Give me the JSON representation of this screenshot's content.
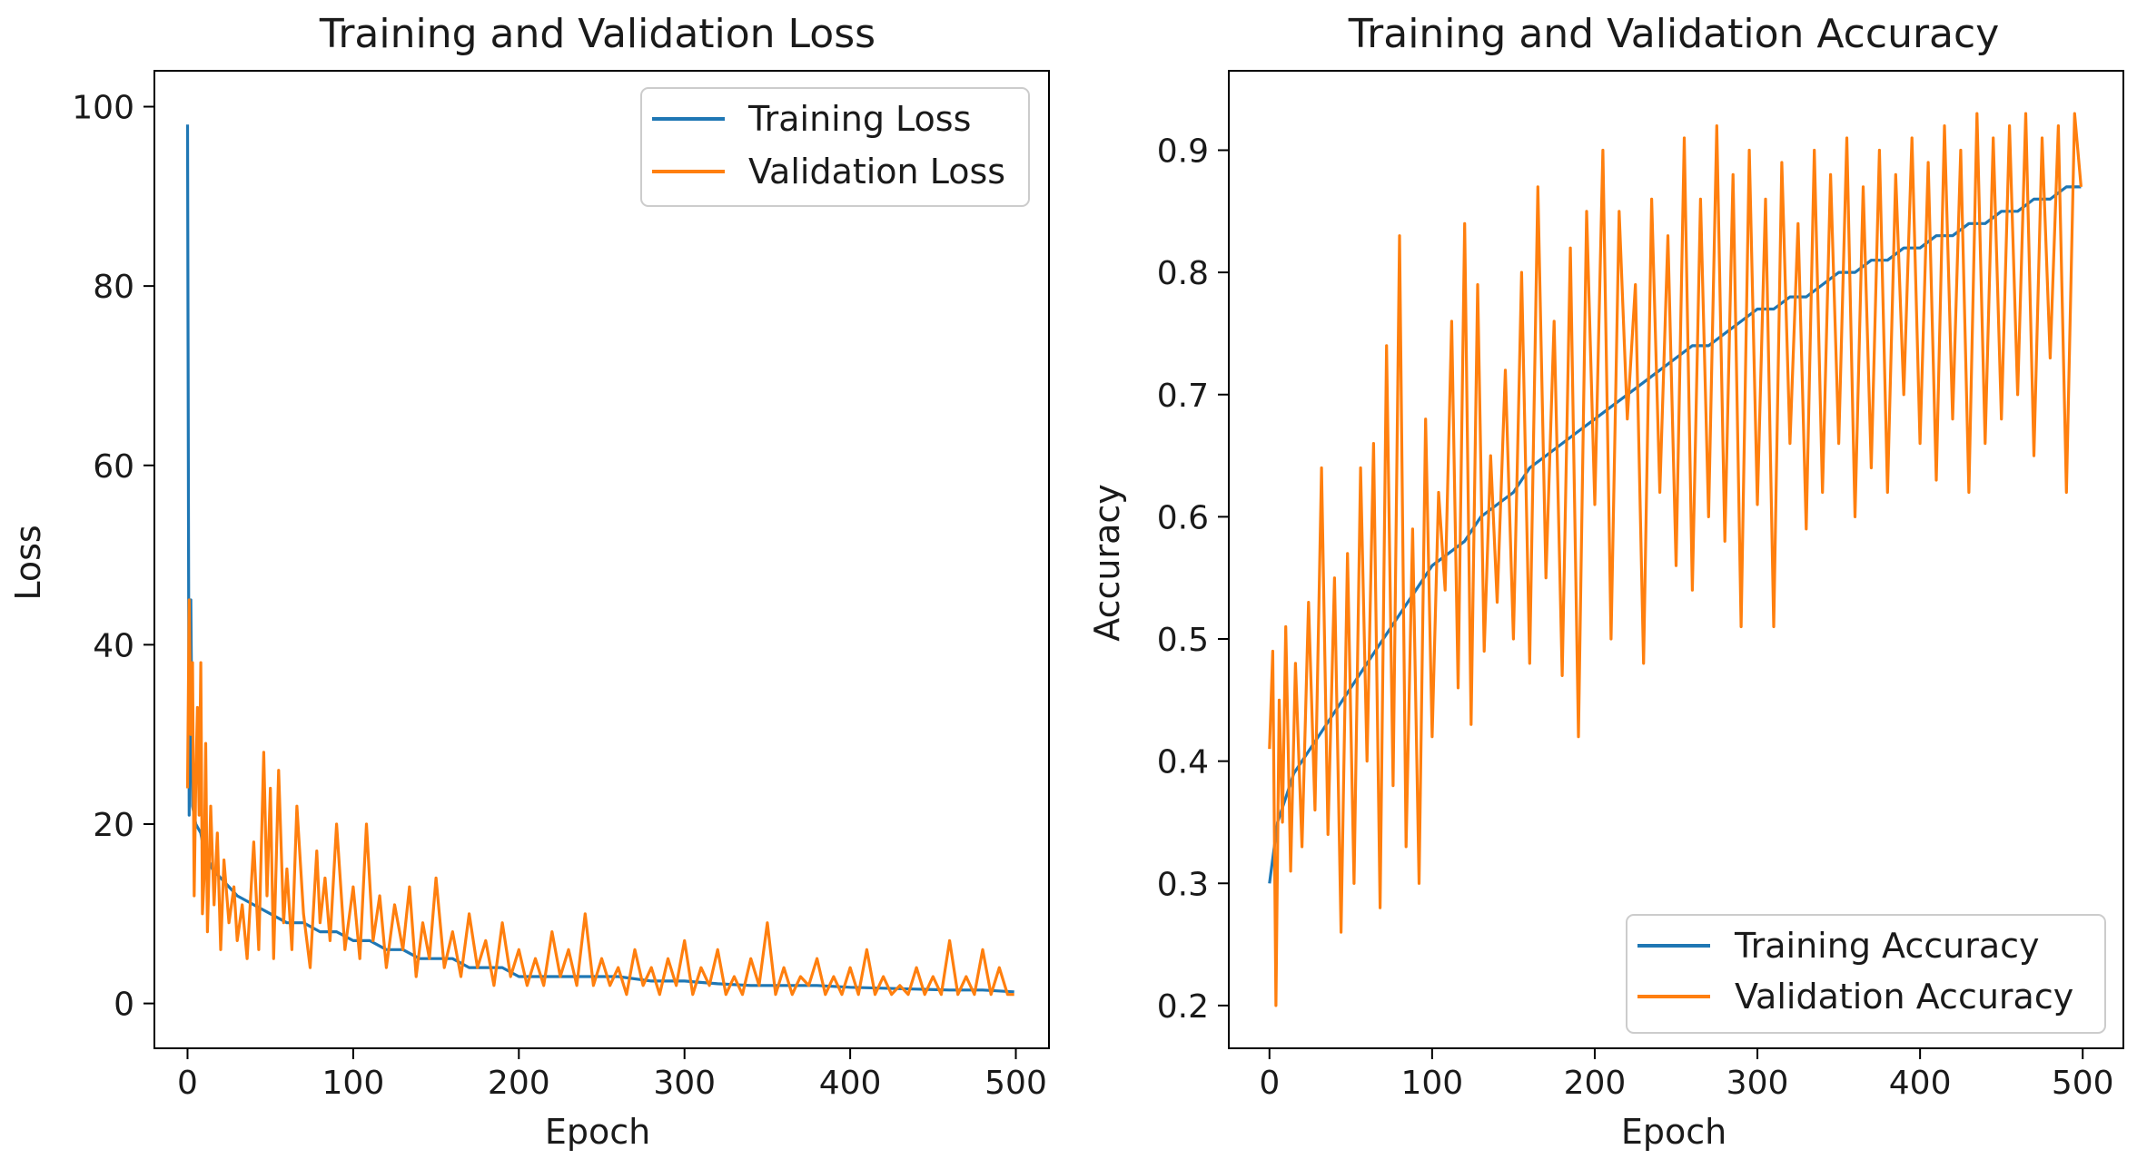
{
  "chart_data": [
    {
      "type": "line",
      "title": "Training and Validation Loss",
      "xlabel": "Epoch",
      "ylabel": "Loss",
      "xlim": [
        -20,
        520
      ],
      "ylim": [
        -5,
        104
      ],
      "xticks": [
        0,
        100,
        200,
        300,
        400,
        500
      ],
      "yticks": [
        0,
        20,
        40,
        60,
        80,
        100
      ],
      "xtick_labels": [
        "0",
        "100",
        "200",
        "300",
        "400",
        "500"
      ],
      "ytick_labels": [
        "0",
        "20",
        "40",
        "60",
        "80",
        "100"
      ],
      "legend_position": "upper right",
      "series": [
        {
          "name": "Training Loss",
          "color": "#1f77b4",
          "x": [
            0,
            1,
            2,
            3,
            5,
            8,
            10,
            15,
            20,
            25,
            30,
            40,
            50,
            60,
            70,
            80,
            90,
            100,
            110,
            120,
            130,
            140,
            150,
            160,
            170,
            180,
            190,
            200,
            220,
            240,
            260,
            280,
            300,
            320,
            340,
            360,
            380,
            400,
            420,
            440,
            460,
            480,
            499
          ],
          "values": [
            98,
            21,
            45,
            22,
            20,
            19,
            17,
            15,
            14,
            13,
            12,
            11,
            10,
            9,
            9,
            8,
            8,
            7,
            7,
            6,
            6,
            5,
            5,
            5,
            4,
            4,
            4,
            3,
            3,
            3,
            3,
            2.5,
            2.5,
            2.2,
            2,
            2,
            2,
            1.8,
            1.7,
            1.6,
            1.5,
            1.5,
            1.3
          ]
        },
        {
          "name": "Validation Loss",
          "color": "#ff7f0e",
          "x": [
            0,
            1,
            2,
            3,
            4,
            5,
            6,
            7,
            8,
            9,
            10,
            11,
            12,
            14,
            16,
            18,
            20,
            22,
            25,
            28,
            30,
            33,
            36,
            40,
            43,
            46,
            48,
            50,
            52,
            55,
            58,
            60,
            63,
            66,
            70,
            74,
            78,
            80,
            83,
            86,
            90,
            95,
            100,
            104,
            108,
            112,
            116,
            120,
            125,
            130,
            134,
            138,
            142,
            146,
            150,
            155,
            160,
            165,
            170,
            175,
            180,
            185,
            190,
            195,
            200,
            205,
            210,
            215,
            220,
            225,
            230,
            235,
            240,
            245,
            250,
            255,
            260,
            265,
            270,
            275,
            280,
            285,
            290,
            295,
            300,
            305,
            310,
            315,
            320,
            325,
            330,
            335,
            340,
            345,
            350,
            355,
            360,
            365,
            370,
            375,
            380,
            385,
            390,
            395,
            400,
            405,
            410,
            415,
            420,
            425,
            430,
            435,
            440,
            445,
            450,
            455,
            460,
            465,
            470,
            475,
            480,
            485,
            490,
            495,
            499
          ],
          "values": [
            24,
            45,
            30,
            38,
            12,
            25,
            33,
            21,
            38,
            10,
            14,
            29,
            8,
            22,
            11,
            19,
            6,
            16,
            9,
            13,
            7,
            11,
            5,
            18,
            6,
            28,
            12,
            24,
            5,
            26,
            9,
            15,
            6,
            22,
            10,
            4,
            17,
            9,
            14,
            7,
            20,
            6,
            13,
            5,
            20,
            7,
            12,
            4,
            11,
            6,
            13,
            3,
            9,
            5,
            14,
            4,
            8,
            3,
            10,
            4,
            7,
            2,
            9,
            3,
            6,
            2,
            5,
            2,
            8,
            3,
            6,
            2,
            10,
            2,
            5,
            2,
            4,
            1,
            6,
            2,
            4,
            1,
            5,
            2,
            7,
            1,
            4,
            2,
            6,
            1,
            3,
            1,
            5,
            2,
            9,
            1,
            4,
            1,
            3,
            2,
            5,
            1,
            3,
            1,
            4,
            1,
            6,
            1,
            3,
            1,
            2,
            1,
            4,
            1,
            3,
            1,
            7,
            1,
            3,
            1,
            6,
            1,
            4,
            1,
            1
          ]
        }
      ]
    },
    {
      "type": "line",
      "title": "Training and Validation Accuracy",
      "xlabel": "Epoch",
      "ylabel": "Accuracy",
      "xlim": [
        -25,
        525
      ],
      "ylim": [
        0.165,
        0.965
      ],
      "xticks": [
        0,
        100,
        200,
        300,
        400,
        500
      ],
      "yticks": [
        0.2,
        0.3,
        0.4,
        0.5,
        0.6,
        0.7,
        0.8,
        0.9
      ],
      "xtick_labels": [
        "0",
        "100",
        "200",
        "300",
        "400",
        "500"
      ],
      "ytick_labels": [
        "0.2",
        "0.3",
        "0.4",
        "0.5",
        "0.6",
        "0.7",
        "0.8",
        "0.9"
      ],
      "legend_position": "lower right",
      "series": [
        {
          "name": "Training Accuracy",
          "color": "#1f77b4",
          "x": [
            0,
            5,
            10,
            15,
            20,
            30,
            40,
            50,
            60,
            70,
            80,
            90,
            100,
            110,
            120,
            130,
            140,
            150,
            160,
            170,
            180,
            190,
            200,
            210,
            220,
            230,
            240,
            250,
            260,
            270,
            280,
            290,
            300,
            310,
            320,
            330,
            340,
            350,
            360,
            370,
            380,
            390,
            400,
            410,
            420,
            430,
            440,
            450,
            460,
            470,
            480,
            490,
            499
          ],
          "values": [
            0.3,
            0.35,
            0.37,
            0.39,
            0.4,
            0.42,
            0.44,
            0.46,
            0.48,
            0.5,
            0.52,
            0.54,
            0.56,
            0.57,
            0.58,
            0.6,
            0.61,
            0.62,
            0.64,
            0.65,
            0.66,
            0.67,
            0.68,
            0.69,
            0.7,
            0.71,
            0.72,
            0.73,
            0.74,
            0.74,
            0.75,
            0.76,
            0.77,
            0.77,
            0.78,
            0.78,
            0.79,
            0.8,
            0.8,
            0.81,
            0.81,
            0.82,
            0.82,
            0.83,
            0.83,
            0.84,
            0.84,
            0.85,
            0.85,
            0.86,
            0.86,
            0.87,
            0.87
          ]
        },
        {
          "name": "Validation Accuracy",
          "color": "#ff7f0e",
          "x": [
            0,
            2,
            4,
            6,
            8,
            10,
            13,
            16,
            20,
            24,
            28,
            32,
            36,
            40,
            44,
            48,
            52,
            56,
            60,
            64,
            68,
            72,
            76,
            80,
            84,
            88,
            92,
            96,
            100,
            104,
            108,
            112,
            116,
            120,
            124,
            128,
            132,
            136,
            140,
            145,
            150,
            155,
            160,
            165,
            170,
            175,
            180,
            185,
            190,
            195,
            200,
            205,
            210,
            215,
            220,
            225,
            230,
            235,
            240,
            245,
            250,
            255,
            260,
            265,
            270,
            275,
            280,
            285,
            290,
            295,
            300,
            305,
            310,
            315,
            320,
            325,
            330,
            335,
            340,
            345,
            350,
            355,
            360,
            365,
            370,
            375,
            380,
            385,
            390,
            395,
            400,
            405,
            410,
            415,
            420,
            425,
            430,
            435,
            440,
            445,
            450,
            455,
            460,
            465,
            470,
            475,
            480,
            485,
            490,
            495,
            499
          ],
          "values": [
            0.41,
            0.49,
            0.2,
            0.45,
            0.35,
            0.51,
            0.31,
            0.48,
            0.33,
            0.53,
            0.36,
            0.64,
            0.34,
            0.55,
            0.26,
            0.57,
            0.3,
            0.64,
            0.4,
            0.66,
            0.28,
            0.74,
            0.38,
            0.83,
            0.33,
            0.59,
            0.3,
            0.68,
            0.42,
            0.62,
            0.54,
            0.76,
            0.46,
            0.84,
            0.43,
            0.79,
            0.49,
            0.65,
            0.53,
            0.72,
            0.5,
            0.8,
            0.48,
            0.87,
            0.55,
            0.76,
            0.47,
            0.82,
            0.42,
            0.85,
            0.61,
            0.9,
            0.5,
            0.85,
            0.68,
            0.79,
            0.48,
            0.86,
            0.62,
            0.83,
            0.56,
            0.91,
            0.54,
            0.86,
            0.6,
            0.92,
            0.58,
            0.88,
            0.51,
            0.9,
            0.61,
            0.86,
            0.51,
            0.89,
            0.66,
            0.84,
            0.59,
            0.9,
            0.62,
            0.88,
            0.66,
            0.91,
            0.6,
            0.87,
            0.64,
            0.9,
            0.62,
            0.88,
            0.7,
            0.91,
            0.66,
            0.89,
            0.63,
            0.92,
            0.68,
            0.9,
            0.62,
            0.93,
            0.66,
            0.91,
            0.68,
            0.92,
            0.7,
            0.93,
            0.65,
            0.91,
            0.73,
            0.92,
            0.62,
            0.93,
            0.87
          ]
        }
      ]
    }
  ]
}
